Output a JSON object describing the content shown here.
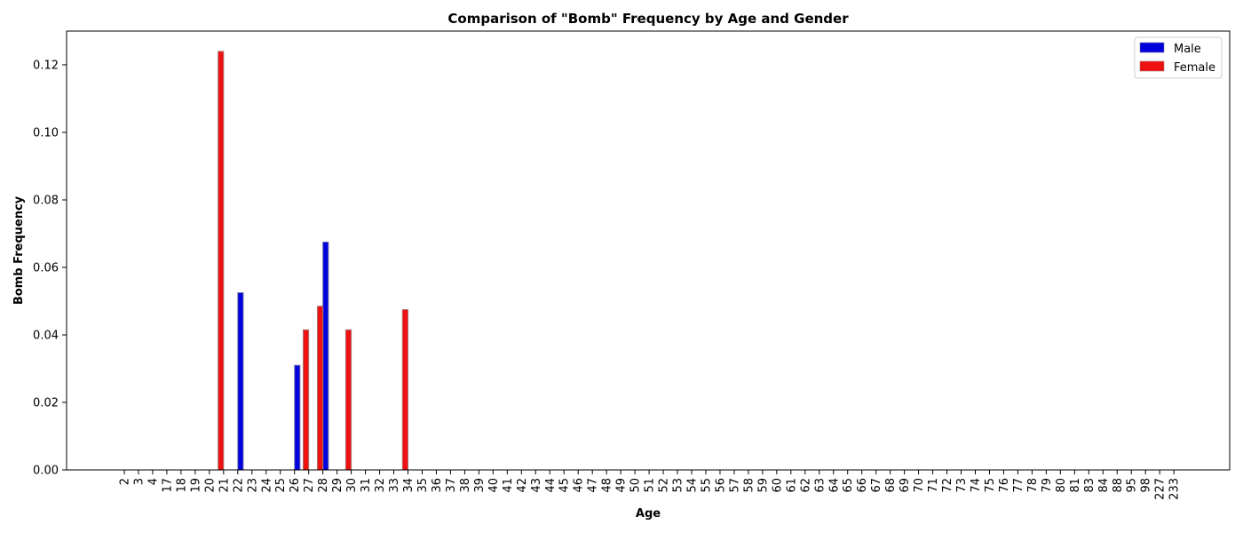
{
  "chart_data": {
    "type": "bar",
    "title": "Comparison of \"Bomb\" Frequency by Age and Gender",
    "xlabel": "Age",
    "ylabel": "Bomb Frequency",
    "ylim": [
      0,
      0.13
    ],
    "yticks": [
      "0.00",
      "0.02",
      "0.04",
      "0.06",
      "0.08",
      "0.10",
      "0.12"
    ],
    "legend_position": "top-right",
    "grid": false,
    "categories": [
      "2",
      "3",
      "4",
      "17",
      "18",
      "19",
      "20",
      "21",
      "22",
      "23",
      "24",
      "25",
      "26",
      "27",
      "28",
      "29",
      "30",
      "31",
      "32",
      "33",
      "34",
      "35",
      "36",
      "37",
      "38",
      "39",
      "40",
      "41",
      "42",
      "43",
      "44",
      "45",
      "46",
      "47",
      "48",
      "49",
      "50",
      "51",
      "52",
      "53",
      "54",
      "55",
      "56",
      "57",
      "58",
      "59",
      "60",
      "61",
      "62",
      "63",
      "64",
      "65",
      "66",
      "67",
      "68",
      "69",
      "70",
      "71",
      "72",
      "73",
      "74",
      "75",
      "76",
      "77",
      "78",
      "79",
      "80",
      "81",
      "83",
      "84",
      "88",
      "95",
      "98",
      "227",
      "233"
    ],
    "series": [
      {
        "name": "Male",
        "color": "#0000dd",
        "values": [
          0,
          0,
          0,
          0,
          0,
          0,
          0,
          0,
          0.0525,
          0,
          0,
          0,
          0.031,
          0,
          0.0675,
          0,
          0,
          0,
          0,
          0,
          0,
          0,
          0,
          0,
          0,
          0,
          0,
          0,
          0,
          0,
          0,
          0,
          0,
          0,
          0,
          0,
          0,
          0,
          0,
          0,
          0,
          0,
          0,
          0,
          0,
          0,
          0,
          0,
          0,
          0,
          0,
          0,
          0,
          0,
          0,
          0,
          0,
          0,
          0,
          0,
          0,
          0,
          0,
          0,
          0,
          0,
          0,
          0,
          0,
          0,
          0,
          0,
          0,
          0,
          0
        ]
      },
      {
        "name": "Female",
        "color": "#ee1111",
        "values": [
          0,
          0,
          0,
          0,
          0,
          0,
          0,
          0.124,
          0,
          0,
          0,
          0,
          0,
          0.0415,
          0.0485,
          0,
          0.0415,
          0,
          0,
          0,
          0.0475,
          0,
          0,
          0,
          0,
          0,
          0,
          0,
          0,
          0,
          0,
          0,
          0,
          0,
          0,
          0,
          0,
          0,
          0,
          0,
          0,
          0,
          0,
          0,
          0,
          0,
          0,
          0,
          0,
          0,
          0,
          0,
          0,
          0,
          0,
          0,
          0,
          0,
          0,
          0,
          0,
          0,
          0,
          0,
          0,
          0,
          0,
          0,
          0,
          0,
          0,
          0,
          0,
          0,
          0
        ]
      }
    ]
  }
}
